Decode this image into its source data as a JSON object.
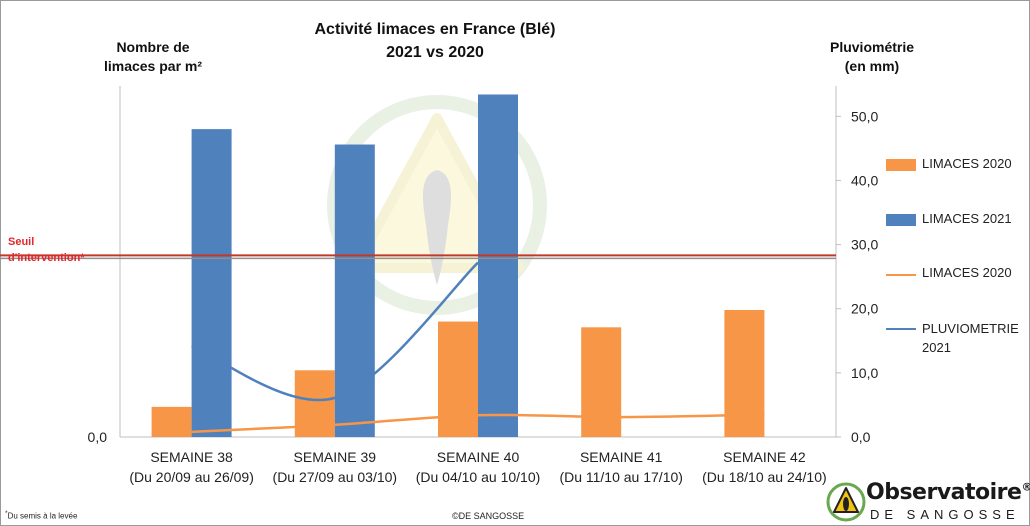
{
  "chart_data": {
    "type": "bar",
    "title": "Activité limaces en France (Blé)",
    "subtitle": "2021 vs 2020",
    "ylabel_left": "Nombre de limaces par m²",
    "ylabel_right": "Pluviométrie (en mm)",
    "categories": [
      "SEMAINE 38|(Du 20/09 au 26/09)",
      "SEMAINE 39|(Du 27/09 au 03/10)",
      "SEMAINE 40|(Du 04/10 au 10/10)",
      "SEMAINE 41|(Du 11/10 au 17/10)",
      "SEMAINE 42|(Du 18/10 au 24/10)"
    ],
    "left_axis_ticks": [
      "0,0"
    ],
    "right_axis": {
      "ylim": [
        0,
        55
      ],
      "ticks": [
        0,
        10,
        20,
        30,
        40,
        50
      ],
      "tick_labels": [
        "0,0",
        "10,0",
        "20,0",
        "30,0",
        "40,0",
        "50,0"
      ]
    },
    "series": [
      {
        "name": "LIMACES 2020",
        "kind": "bar",
        "color": "#f79646",
        "values": [
          4.7,
          10.4,
          18.0,
          17.1,
          19.8
        ]
      },
      {
        "name": "LIMACES 2021",
        "kind": "bar",
        "color": "#4f81bd",
        "values": [
          48.0,
          45.6,
          53.4,
          null,
          null
        ]
      },
      {
        "name": "LIMACES 2020",
        "kind": "line",
        "color": "#f79646",
        "values": [
          0.8,
          1.9,
          3.4,
          3.1,
          3.5
        ]
      },
      {
        "name": "PLUVIOMETRIE 2021",
        "kind": "line",
        "color": "#4f81bd",
        "values": [
          14.2,
          6.1,
          27.2,
          null,
          null
        ]
      }
    ],
    "threshold": {
      "label": "Seuil d'intervention*",
      "value": 28.0,
      "color": "#c0392b"
    },
    "legend_position": "right"
  },
  "chart": {
    "title_line1": "Activité limaces en France (Blé)",
    "title_line2": "2021 vs 2020",
    "left_axis_title_line1": "Nombre de",
    "left_axis_title_line2": "limaces par m²",
    "right_axis_title_line1": "Pluviométrie",
    "right_axis_title_line2": "(en mm)",
    "seuil_line1": "Seuil",
    "seuil_line2": "d'intervention*",
    "left_zero_label": "0,0"
  },
  "legend": {
    "items": [
      {
        "label": "LIMACES 2020",
        "kind": "bar",
        "color": "#f79646"
      },
      {
        "label": "LIMACES 2021",
        "kind": "bar",
        "color": "#4f81bd"
      },
      {
        "label": "LIMACES 2020",
        "kind": "line",
        "color": "#f79646"
      },
      {
        "label": "PLUVIOMETRIE 2021",
        "kind": "line",
        "color": "#4f81bd"
      }
    ]
  },
  "footer": {
    "footnote_star": "*",
    "footnote_text": "Du semis à la levée",
    "copyright": "©DE SANGOSSE"
  },
  "logo": {
    "name": "Observatoire",
    "registered": "®",
    "sub": "DE SANGOSSE"
  }
}
